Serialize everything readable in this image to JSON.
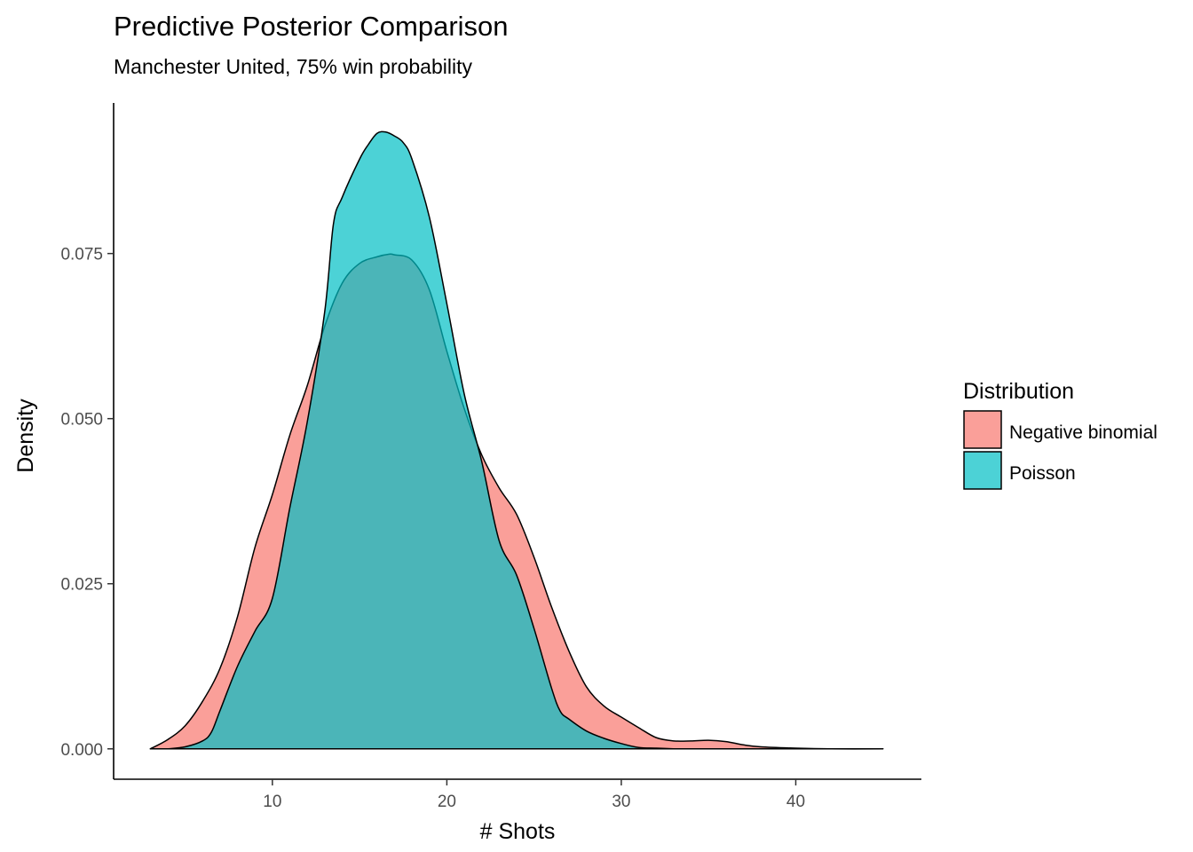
{
  "chart_data": {
    "type": "area",
    "title": "Predictive Posterior Comparison",
    "subtitle": "Manchester United, 75% win probability",
    "xlabel": "# Shots",
    "ylabel": "Density",
    "xlim": [
      0.9,
      47.2
    ],
    "ylim": [
      -0.0046,
      0.0978
    ],
    "x_ticks": [
      10,
      20,
      30,
      40
    ],
    "y_ticks": [
      0.0,
      0.025,
      0.05,
      0.075
    ],
    "x_tick_labels": [
      "10",
      "20",
      "30",
      "40"
    ],
    "y_tick_labels": [
      "0.000",
      "0.025",
      "0.050",
      "0.075"
    ],
    "grid": false,
    "legend": {
      "title": "Distribution",
      "position": "right"
    },
    "series": [
      {
        "name": "Negative binomial",
        "color": "#F8766D",
        "x": [
          3,
          4,
          5,
          6,
          7,
          8,
          9,
          10,
          11,
          12,
          13,
          14,
          15,
          16,
          16.7,
          17,
          18,
          19,
          20,
          21,
          22,
          23,
          24,
          25,
          26,
          27,
          28,
          29,
          30,
          31,
          32,
          33,
          34,
          35,
          36,
          37,
          38,
          40,
          42,
          45
        ],
        "y": [
          0.0,
          0.0014,
          0.0035,
          0.0072,
          0.0122,
          0.02,
          0.0305,
          0.0385,
          0.0475,
          0.055,
          0.064,
          0.0705,
          0.0735,
          0.0745,
          0.0749,
          0.0748,
          0.074,
          0.0695,
          0.0602,
          0.0515,
          0.0445,
          0.0395,
          0.0355,
          0.029,
          0.0215,
          0.0148,
          0.0094,
          0.0065,
          0.0048,
          0.0032,
          0.0017,
          0.0012,
          0.0012,
          0.0013,
          0.0011,
          0.0006,
          0.0003,
          0.0001,
          0.0,
          0.0
        ]
      },
      {
        "name": "Poisson",
        "color": "#00BFC4",
        "x": [
          4,
          5,
          6,
          6.5,
          7,
          8,
          9,
          10,
          11,
          12,
          13,
          13.5,
          14,
          15,
          15.5,
          16,
          16.5,
          17,
          17.5,
          18,
          19,
          20,
          21,
          22,
          23,
          24,
          25,
          26,
          26.5,
          27,
          28,
          29,
          30,
          31,
          32,
          33
        ],
        "y": [
          0.0,
          0.0003,
          0.0012,
          0.0025,
          0.0058,
          0.0125,
          0.0178,
          0.0228,
          0.0365,
          0.0495,
          0.0662,
          0.0795,
          0.0835,
          0.0893,
          0.0915,
          0.0932,
          0.0934,
          0.0928,
          0.0918,
          0.0893,
          0.0805,
          0.0674,
          0.0537,
          0.0435,
          0.0315,
          0.0263,
          0.0182,
          0.0092,
          0.0057,
          0.0045,
          0.0027,
          0.0016,
          0.0008,
          0.0002,
          0.0001,
          0.0
        ]
      }
    ]
  }
}
